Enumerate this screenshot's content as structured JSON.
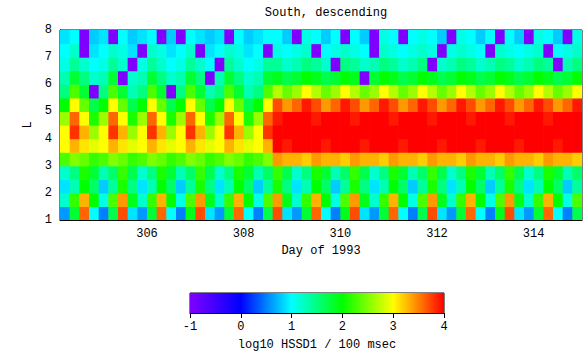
{
  "chart_data": {
    "type": "heatmap",
    "title": "South, descending",
    "x_label": "Day of 1993",
    "y_label": "L",
    "xlim": [
      304.2,
      315.0
    ],
    "xticks": [
      306,
      308,
      310,
      312,
      314
    ],
    "ylim": [
      1,
      8
    ],
    "yticks": [
      1,
      2,
      3,
      4,
      5,
      6,
      7,
      8
    ],
    "x_bins": [
      304.2,
      304.4,
      304.6,
      304.8,
      305.0,
      305.2,
      305.4,
      305.6,
      305.8,
      306.0,
      306.2,
      306.4,
      306.6,
      306.8,
      307.0,
      307.2,
      307.4,
      307.6,
      307.8,
      308.0,
      308.2,
      308.4,
      308.6,
      308.8,
      309.0,
      309.2,
      309.4,
      309.6,
      309.8,
      310.0,
      310.2,
      310.4,
      310.6,
      310.8,
      311.0,
      311.2,
      311.4,
      311.6,
      311.8,
      312.0,
      312.2,
      312.4,
      312.6,
      312.8,
      313.0,
      313.2,
      313.4,
      313.6,
      313.8,
      314.0,
      314.2,
      314.4,
      314.6,
      314.8,
      315.0
    ],
    "y_bins": [
      1.0,
      1.5,
      2.0,
      2.5,
      3.0,
      3.5,
      4.0,
      4.5,
      5.0,
      5.5,
      6.0,
      6.5,
      7.0,
      7.5,
      8.0
    ],
    "z": [
      [
        0.6,
        1.8,
        3.6,
        1.0,
        0.5,
        1.7,
        3.7,
        0.9,
        0.6,
        1.8,
        3.6,
        1.0,
        0.5,
        1.9,
        3.7,
        0.9,
        0.6,
        1.8,
        3.6,
        1.0,
        0.5,
        1.7,
        3.7,
        0.9,
        0.6,
        1.8,
        3.6,
        1.0,
        0.5,
        1.9,
        3.7,
        0.9,
        0.6,
        1.8,
        3.6,
        1.0,
        0.5,
        1.7,
        3.7,
        0.9,
        0.6,
        1.8,
        3.6,
        1.0,
        0.5,
        1.9,
        3.7,
        0.9,
        0.6,
        1.8,
        3.6,
        1.0,
        0.5,
        1.7
      ],
      [
        1.2,
        2.2,
        3.3,
        2.0,
        1.1,
        2.3,
        3.4,
        1.9,
        1.2,
        2.2,
        3.3,
        2.0,
        1.1,
        2.3,
        3.4,
        1.9,
        1.2,
        2.2,
        3.3,
        2.0,
        1.1,
        2.3,
        3.4,
        1.9,
        1.2,
        2.2,
        3.3,
        2.0,
        1.1,
        2.3,
        3.4,
        1.9,
        1.2,
        2.2,
        3.3,
        2.0,
        1.1,
        2.3,
        3.4,
        1.9,
        1.2,
        2.2,
        3.3,
        2.0,
        1.1,
        2.3,
        3.4,
        1.9,
        1.2,
        2.2,
        3.3,
        2.0,
        1.1,
        2.3
      ],
      [
        0.9,
        1.3,
        2.0,
        1.6,
        0.8,
        1.4,
        2.1,
        1.5,
        0.9,
        1.3,
        2.0,
        1.6,
        0.8,
        1.4,
        2.1,
        1.5,
        0.9,
        1.3,
        2.0,
        1.6,
        0.8,
        1.4,
        2.1,
        1.5,
        0.9,
        1.3,
        2.0,
        1.6,
        0.8,
        1.4,
        2.1,
        1.5,
        0.9,
        1.3,
        2.0,
        1.6,
        0.8,
        1.4,
        2.1,
        1.5,
        0.9,
        1.3,
        2.0,
        1.6,
        0.8,
        1.4,
        2.1,
        1.5,
        0.9,
        1.3,
        2.0,
        1.6,
        0.8,
        1.4
      ],
      [
        1.2,
        1.5,
        2.1,
        1.8,
        1.3,
        1.6,
        2.2,
        1.7,
        1.2,
        1.5,
        2.1,
        1.8,
        1.3,
        1.6,
        2.2,
        1.7,
        1.2,
        1.5,
        2.1,
        1.8,
        1.3,
        1.6,
        2.2,
        1.7,
        1.2,
        1.5,
        2.1,
        1.8,
        1.3,
        1.6,
        2.2,
        1.7,
        1.2,
        1.5,
        2.1,
        1.8,
        1.3,
        1.6,
        2.2,
        1.7,
        1.2,
        1.5,
        2.1,
        1.8,
        1.3,
        1.6,
        2.2,
        1.7,
        1.2,
        1.5,
        2.1,
        1.8,
        1.3,
        1.6
      ],
      [
        2.3,
        2.5,
        2.4,
        2.2,
        2.3,
        2.5,
        2.4,
        2.2,
        2.3,
        2.5,
        2.4,
        2.2,
        2.3,
        2.5,
        2.4,
        2.2,
        2.3,
        2.5,
        2.4,
        2.2,
        2.3,
        2.5,
        3.4,
        3.3,
        3.3,
        3.2,
        3.4,
        3.3,
        3.3,
        3.2,
        3.4,
        3.3,
        3.3,
        3.2,
        3.4,
        3.3,
        3.3,
        3.2,
        3.4,
        3.3,
        3.3,
        3.2,
        3.4,
        3.3,
        3.3,
        3.2,
        3.4,
        3.3,
        3.3,
        3.2,
        3.4,
        3.3,
        3.3,
        3.2
      ],
      [
        3.0,
        3.3,
        3.1,
        2.9,
        3.0,
        3.3,
        3.1,
        2.9,
        3.0,
        3.3,
        3.1,
        2.9,
        3.0,
        3.3,
        3.1,
        2.9,
        3.0,
        3.3,
        3.1,
        2.9,
        3.0,
        3.3,
        4.0,
        3.9,
        4.0,
        4.0,
        4.0,
        3.9,
        4.0,
        4.0,
        4.0,
        3.9,
        4.0,
        4.0,
        4.0,
        3.9,
        4.0,
        4.0,
        4.0,
        3.9,
        4.0,
        4.0,
        4.0,
        3.9,
        4.0,
        4.0,
        4.0,
        3.9,
        4.0,
        4.0,
        4.0,
        3.9,
        4.0,
        4.0
      ],
      [
        3.0,
        3.8,
        3.3,
        2.6,
        3.0,
        3.8,
        3.3,
        2.6,
        3.0,
        3.8,
        3.3,
        2.6,
        3.0,
        3.8,
        3.3,
        2.6,
        3.0,
        3.8,
        3.3,
        2.6,
        3.0,
        3.8,
        4.0,
        4.0,
        4.0,
        4.0,
        4.0,
        4.0,
        4.0,
        4.0,
        4.0,
        4.0,
        4.0,
        4.0,
        4.0,
        4.0,
        4.0,
        4.0,
        4.0,
        4.0,
        4.0,
        4.0,
        4.0,
        4.0,
        4.0,
        4.0,
        4.0,
        4.0,
        4.0,
        4.0,
        4.0,
        4.0,
        4.0,
        4.0
      ],
      [
        2.6,
        3.6,
        3.0,
        2.1,
        2.6,
        3.6,
        3.0,
        2.1,
        2.6,
        3.6,
        3.0,
        2.1,
        2.6,
        3.6,
        3.0,
        2.1,
        2.6,
        3.6,
        3.0,
        2.1,
        2.6,
        3.6,
        3.9,
        4.0,
        4.0,
        4.0,
        3.9,
        4.0,
        4.0,
        4.0,
        3.9,
        4.0,
        4.0,
        4.0,
        3.9,
        4.0,
        4.0,
        4.0,
        3.9,
        4.0,
        4.0,
        4.0,
        3.9,
        4.0,
        4.0,
        4.0,
        3.9,
        4.0,
        4.0,
        4.0,
        3.9,
        4.0,
        4.0,
        4.0
      ],
      [
        2.0,
        3.0,
        2.4,
        1.7,
        2.0,
        3.0,
        2.4,
        1.7,
        2.0,
        3.0,
        2.4,
        1.7,
        2.0,
        3.0,
        2.4,
        1.7,
        2.0,
        3.0,
        2.4,
        1.7,
        2.0,
        3.0,
        3.7,
        3.4,
        3.6,
        3.9,
        3.7,
        3.4,
        3.6,
        3.9,
        3.7,
        3.4,
        3.6,
        3.9,
        3.7,
        3.4,
        3.6,
        3.9,
        3.7,
        3.4,
        3.6,
        3.9,
        3.7,
        3.4,
        3.6,
        3.9,
        3.7,
        3.4,
        3.6,
        3.9,
        3.7,
        3.4,
        3.6,
        3.9
      ],
      [
        1.5,
        2.3,
        1.8,
        -1.0,
        1.5,
        2.3,
        1.8,
        1.3,
        1.5,
        2.3,
        1.8,
        -1.0,
        1.5,
        2.3,
        1.8,
        1.3,
        1.5,
        2.3,
        1.8,
        1.3,
        1.5,
        2.3,
        2.7,
        2.4,
        2.6,
        3.0,
        2.7,
        2.4,
        2.6,
        3.0,
        2.7,
        2.4,
        2.6,
        3.0,
        2.7,
        2.4,
        2.6,
        3.0,
        2.7,
        2.4,
        2.6,
        3.0,
        2.7,
        2.4,
        2.6,
        3.0,
        2.7,
        2.4,
        2.6,
        3.0,
        2.7,
        2.4,
        2.6,
        3.0
      ],
      [
        1.3,
        1.8,
        1.5,
        1.2,
        1.3,
        1.8,
        -1.0,
        1.2,
        1.3,
        1.8,
        1.5,
        1.2,
        1.3,
        1.8,
        1.5,
        -1.0,
        1.3,
        1.8,
        1.5,
        1.2,
        1.3,
        1.8,
        1.9,
        1.7,
        1.8,
        2.0,
        1.9,
        1.7,
        1.8,
        2.0,
        1.9,
        -1.0,
        1.8,
        2.0,
        1.9,
        1.7,
        1.8,
        2.0,
        1.9,
        1.7,
        1.8,
        2.0,
        1.9,
        1.7,
        1.8,
        2.0,
        1.9,
        1.7,
        1.8,
        2.0,
        1.9,
        1.7,
        1.8,
        2.0
      ],
      [
        1.1,
        1.4,
        1.2,
        1.0,
        1.1,
        1.4,
        1.2,
        -1.0,
        1.1,
        1.4,
        1.2,
        1.0,
        1.1,
        1.4,
        1.2,
        1.0,
        -1.0,
        1.4,
        1.2,
        1.0,
        1.1,
        1.4,
        1.4,
        1.2,
        1.3,
        1.5,
        1.4,
        1.2,
        -1.0,
        1.5,
        1.4,
        1.2,
        1.3,
        1.5,
        1.4,
        1.2,
        1.3,
        1.5,
        -1.0,
        1.2,
        1.3,
        1.5,
        1.4,
        1.2,
        1.3,
        1.5,
        1.4,
        1.2,
        1.3,
        1.5,
        1.4,
        -1.0,
        1.3,
        1.5
      ],
      [
        1.0,
        1.2,
        -1.0,
        0.9,
        1.0,
        1.2,
        1.1,
        0.9,
        -1.0,
        1.2,
        1.1,
        0.9,
        1.0,
        1.2,
        -1.0,
        0.9,
        1.0,
        1.2,
        1.1,
        0.9,
        1.0,
        -1.0,
        1.1,
        1.0,
        1.1,
        1.2,
        -1.0,
        1.0,
        1.1,
        1.2,
        1.1,
        1.0,
        -1.0,
        1.2,
        1.1,
        1.0,
        1.1,
        1.2,
        1.1,
        -1.0,
        1.1,
        1.2,
        1.1,
        1.0,
        -1.0,
        1.2,
        1.1,
        1.0,
        1.1,
        1.2,
        -1.0,
        1.0,
        1.1,
        1.2
      ],
      [
        0.9,
        1.0,
        -1.0,
        0.8,
        0.9,
        -1.0,
        1.0,
        0.8,
        0.9,
        1.0,
        -1.0,
        0.8,
        -1.0,
        1.0,
        0.9,
        0.8,
        0.9,
        -1.0,
        1.0,
        0.8,
        0.9,
        1.0,
        1.0,
        0.8,
        -1.0,
        1.1,
        1.0,
        0.8,
        1.0,
        -1.0,
        1.0,
        0.8,
        -1.0,
        1.1,
        1.0,
        -1.0,
        1.0,
        1.1,
        1.0,
        0.8,
        -1.0,
        1.1,
        1.0,
        0.8,
        1.0,
        -1.0,
        1.0,
        0.8,
        -1.0,
        1.1,
        1.0,
        0.8,
        -1.0,
        1.1
      ]
    ],
    "colorbar": {
      "label": "log10 HSSD1 / 100 msec",
      "range": [
        -1,
        4
      ],
      "ticks": [
        -1,
        0,
        1,
        2,
        3,
        4
      ]
    }
  }
}
